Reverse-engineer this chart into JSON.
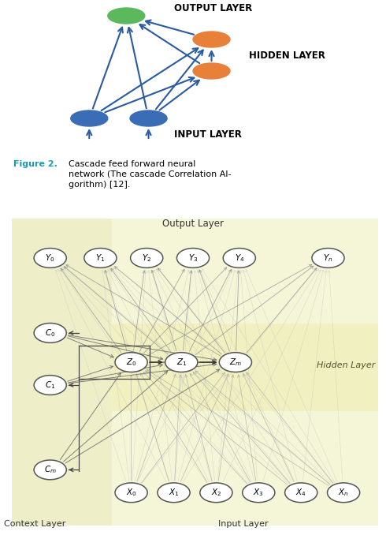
{
  "fig_width": 4.9,
  "fig_height": 6.78,
  "dpi": 100,
  "top_bg": "#ffffff",
  "caption_bg": "#c8e8f0",
  "caption_color": "#1a9ab0",
  "bottom_bg": "#f5f5d8",
  "context_bg": "#eeeec8",
  "hidden_bg": "#f0f0c0",
  "node_output_color": "#5cb85c",
  "node_hidden_color": "#e8803a",
  "node_input_color": "#3a6db5",
  "arrow_color": "#2a5aa0",
  "top_labels": [
    "OUTPUT LAYER",
    "HIDDEN LAYER",
    "INPUT LAYER"
  ],
  "bottom_output_labels": [
    "Y_0",
    "Y_1",
    "Y_2",
    "Y_3",
    "Y_4",
    "Y_n"
  ],
  "bottom_hidden_labels": [
    "Z_0",
    "Z_1",
    "Z_m"
  ],
  "bottom_input_labels": [
    "X_0",
    "X_1",
    "X_2",
    "X_3",
    "X_4",
    "X_n"
  ],
  "bottom_context_labels": [
    "C_0",
    "C_1",
    "C_m"
  ]
}
